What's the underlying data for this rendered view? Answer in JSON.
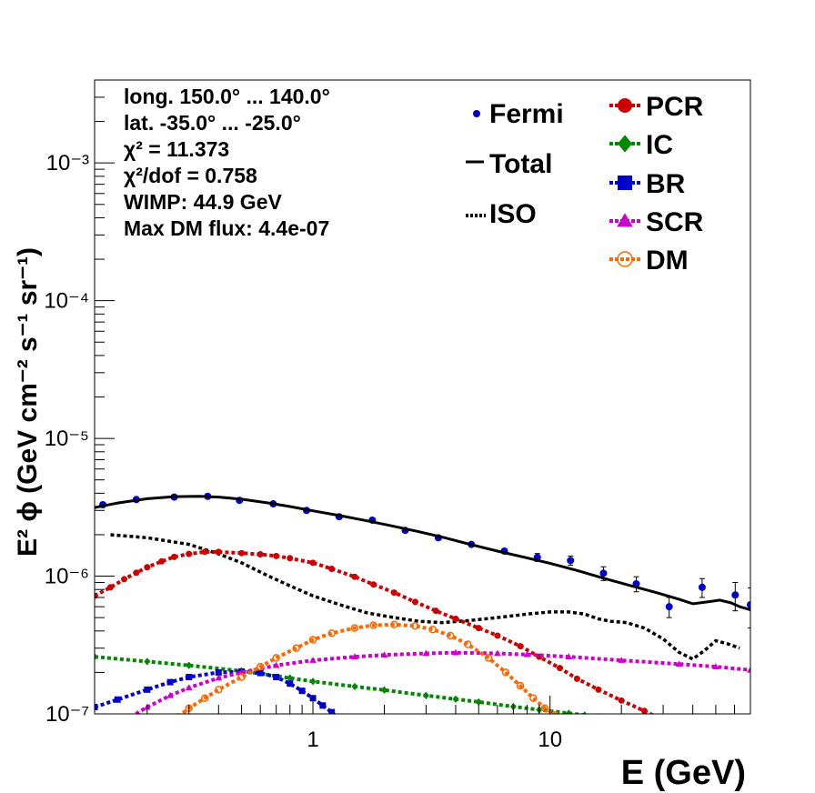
{
  "chart_data": {
    "type": "scatter",
    "xlabel": "E (GeV)",
    "ylabel": "E² ϕ (GeV cm⁻² s⁻¹ sr⁻¹)",
    "xscale": "log",
    "yscale": "log",
    "xlim": [
      0.12,
      70
    ],
    "ylim": [
      1e-07,
      0.004
    ],
    "x_ticks": [
      {
        "value": 1,
        "label": "1"
      },
      {
        "value": 10,
        "label": "10"
      }
    ],
    "y_ticks": [
      {
        "value": 1e-07,
        "label": "10⁻⁷"
      },
      {
        "value": 1e-06,
        "label": "10⁻⁶"
      },
      {
        "value": 1e-05,
        "label": "10⁻⁵"
      },
      {
        "value": 0.0001,
        "label": "10⁻⁴"
      },
      {
        "value": 0.001,
        "label": "10⁻³"
      }
    ],
    "grid": false,
    "legend_placement": "top-right",
    "info_lines": [
      "long. 150.0° ... 140.0°",
      "lat. -35.0° ... -25.0°",
      "χ² = 11.373",
      "χ²/dof = 0.758",
      "WIMP: 44.9 GeV",
      "Max DM flux: 4.4e-07"
    ],
    "series": [
      {
        "name": "Fermi",
        "kind": "points",
        "color": "#0000cc",
        "x": [
          0.13,
          0.18,
          0.26,
          0.36,
          0.49,
          0.68,
          0.94,
          1.29,
          1.78,
          2.45,
          3.38,
          4.66,
          6.42,
          8.84,
          12.2,
          16.8,
          23.1,
          31.8,
          43.8,
          60.4,
          70.0
        ],
        "y": [
          3.3e-06,
          3.6e-06,
          3.75e-06,
          3.8e-06,
          3.55e-06,
          3.35e-06,
          3e-06,
          2.7e-06,
          2.55e-06,
          2.15e-06,
          1.9e-06,
          1.7e-06,
          1.52e-06,
          1.37e-06,
          1.3e-06,
          1.05e-06,
          8.8e-07,
          6e-07,
          8.3e-07,
          7.3e-07,
          6.2e-07
        ],
        "yerr": [
          1e-07,
          1e-07,
          1e-07,
          1e-07,
          1e-07,
          1e-07,
          8e-08,
          8e-08,
          8e-08,
          7e-08,
          7e-08,
          6e-08,
          6e-08,
          9e-08,
          1e-07,
          1.2e-07,
          1.1e-07,
          1e-07,
          1.3e-07,
          1.7e-07,
          2e-07
        ]
      },
      {
        "name": "Total",
        "kind": "line",
        "style": "solid",
        "color": "#000000",
        "x": [
          0.12,
          0.15,
          0.2,
          0.26,
          0.33,
          0.4,
          0.5,
          0.65,
          0.8,
          1.0,
          1.3,
          1.7,
          2.2,
          2.8,
          3.6,
          4.6,
          6.0,
          7.8,
          10,
          13,
          17,
          22,
          28,
          35,
          40,
          46,
          52,
          58,
          63,
          70
        ],
        "y": [
          3.15e-06,
          3.4e-06,
          3.65e-06,
          3.78e-06,
          3.8e-06,
          3.75e-06,
          3.62e-06,
          3.4e-06,
          3.2e-06,
          2.98e-06,
          2.75e-06,
          2.52e-06,
          2.3e-06,
          2.1e-06,
          1.9e-06,
          1.7e-06,
          1.52e-06,
          1.37e-06,
          1.24e-06,
          1.1e-06,
          9.6e-07,
          8.5e-07,
          7.6e-07,
          6.8e-07,
          6.3e-07,
          6.5e-07,
          6.7e-07,
          6.4e-07,
          6e-07,
          5.7e-07
        ]
      },
      {
        "name": "ISO",
        "kind": "line",
        "style": "dotted",
        "color": "#000000",
        "x": [
          0.14,
          0.2,
          0.3,
          0.4,
          0.5,
          0.65,
          0.8,
          1.0,
          1.3,
          1.7,
          2.2,
          2.8,
          3.5,
          4.5,
          6.0,
          8.0,
          10,
          12,
          14,
          16,
          18,
          21,
          25,
          30,
          35,
          40,
          45,
          50,
          57,
          63
        ],
        "y": [
          2e-06,
          1.9e-06,
          1.7e-06,
          1.45e-06,
          1.25e-06,
          1e-06,
          8.5e-07,
          7.2e-07,
          6.2e-07,
          5.4e-07,
          5e-07,
          4.7e-07,
          4.6e-07,
          4.75e-07,
          5e-07,
          5.3e-07,
          5.5e-07,
          5.5e-07,
          5.3e-07,
          4.9e-07,
          4.7e-07,
          4.6e-07,
          4.2e-07,
          3.5e-07,
          2.8e-07,
          2.5e-07,
          2.9e-07,
          3.4e-07,
          3.2e-07,
          3e-07
        ]
      },
      {
        "name": "PCR",
        "kind": "line-markers",
        "marker": "circle",
        "color": "#cc0000",
        "x": [
          0.12,
          0.14,
          0.16,
          0.18,
          0.2,
          0.23,
          0.26,
          0.3,
          0.35,
          0.4,
          0.5,
          0.6,
          0.7,
          0.8,
          1.0,
          1.2,
          1.5,
          1.8,
          2.2,
          2.7,
          3.3,
          4.0,
          5.0,
          6.0,
          7.5,
          9.0,
          11,
          13,
          16,
          20,
          25,
          30
        ],
        "y": [
          7.2e-07,
          8.3e-07,
          9.5e-07,
          1.06e-06,
          1.16e-06,
          1.28e-06,
          1.38e-06,
          1.45e-06,
          1.5e-06,
          1.5e-06,
          1.47e-06,
          1.44e-06,
          1.4e-06,
          1.35e-06,
          1.25e-06,
          1.13e-06,
          9.9e-07,
          8.7e-07,
          7.6e-07,
          6.5e-07,
          5.6e-07,
          4.9e-07,
          4.2e-07,
          3.7e-07,
          3.1e-07,
          2.6e-07,
          2.15e-07,
          1.8e-07,
          1.5e-07,
          1.25e-07,
          1.05e-07,
          9e-08
        ]
      },
      {
        "name": "IC",
        "kind": "line-markers",
        "marker": "diamond",
        "color": "#008800",
        "x": [
          0.12,
          0.2,
          0.3,
          0.5,
          0.8,
          1.0,
          1.5,
          2.0,
          3.0,
          4.0,
          5.0,
          7.0,
          9.0,
          12,
          14,
          16
        ],
        "y": [
          2.6e-07,
          2.4e-07,
          2.25e-07,
          2.05e-07,
          1.82e-07,
          1.72e-07,
          1.58e-07,
          1.49e-07,
          1.36e-07,
          1.28e-07,
          1.22e-07,
          1.13e-07,
          1.07e-07,
          1.01e-07,
          9.8e-08,
          9.5e-08
        ]
      },
      {
        "name": "BR",
        "kind": "line-markers",
        "marker": "square",
        "color": "#0000cc",
        "x": [
          0.12,
          0.15,
          0.2,
          0.25,
          0.3,
          0.4,
          0.5,
          0.6,
          0.7,
          0.8,
          0.9,
          1.0,
          1.1,
          1.2,
          1.3
        ],
        "y": [
          1.12e-07,
          1.27e-07,
          1.5e-07,
          1.7e-07,
          1.85e-07,
          2e-07,
          2.03e-07,
          1.98e-07,
          1.85e-07,
          1.66e-07,
          1.47e-07,
          1.3e-07,
          1.15e-07,
          1.03e-07,
          9e-08
        ]
      },
      {
        "name": "SCR",
        "kind": "line-markers",
        "marker": "triangle",
        "color": "#cc00cc",
        "x": [
          0.17,
          0.2,
          0.25,
          0.3,
          0.4,
          0.5,
          0.7,
          1.0,
          1.5,
          2.0,
          3.0,
          4.0,
          6.0,
          8.0,
          12,
          20,
          35,
          50,
          70
        ],
        "y": [
          9.5e-08,
          1.12e-07,
          1.36e-07,
          1.55e-07,
          1.82e-07,
          2e-07,
          2.25e-07,
          2.45e-07,
          2.6e-07,
          2.68e-07,
          2.75e-07,
          2.78e-07,
          2.75e-07,
          2.7e-07,
          2.6e-07,
          2.45e-07,
          2.3e-07,
          2.2e-07,
          2.08e-07
        ]
      },
      {
        "name": "DM",
        "kind": "line-markers",
        "marker": "open-circle",
        "color": "#ff6600",
        "x": [
          0.27,
          0.3,
          0.35,
          0.4,
          0.5,
          0.6,
          0.7,
          0.85,
          1.0,
          1.2,
          1.5,
          1.8,
          2.2,
          2.7,
          3.2,
          3.8,
          4.5,
          5.5,
          6.5,
          7.5,
          8.5,
          9.5,
          10.5,
          11.5
        ],
        "y": [
          9.5e-08,
          1.1e-07,
          1.3e-07,
          1.5e-07,
          1.85e-07,
          2.2e-07,
          2.55e-07,
          3e-07,
          3.45e-07,
          3.85e-07,
          4.2e-07,
          4.4e-07,
          4.45e-07,
          4.35e-07,
          4.1e-07,
          3.7e-07,
          3.2e-07,
          2.55e-07,
          2e-07,
          1.6e-07,
          1.3e-07,
          1.1e-07,
          9.8e-08,
          9e-08
        ]
      }
    ]
  }
}
